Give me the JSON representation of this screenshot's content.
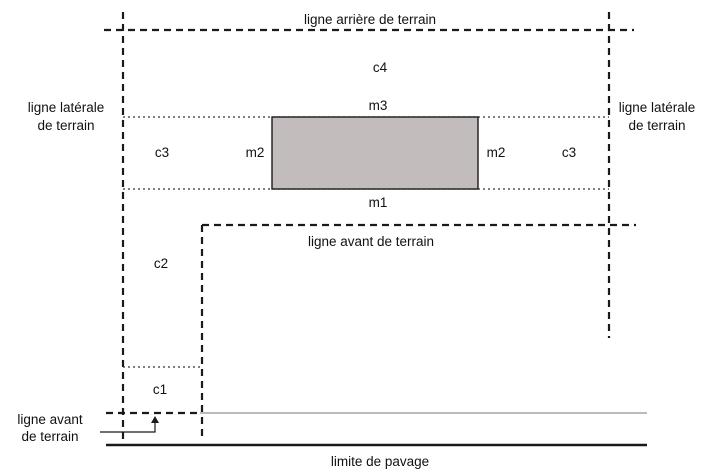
{
  "labels": {
    "rear_line": "ligne arrière de terrain",
    "side_left_1": "ligne latérale",
    "side_left_2": "de terrain",
    "side_right_1": "ligne latérale",
    "side_right_2": "de terrain",
    "front_line": "ligne avant de terrain",
    "front_left_1": "ligne avant",
    "front_left_2": "de terrain",
    "paving": "limite de pavage"
  },
  "zones": {
    "c1": "c1",
    "c2": "c2",
    "c3_left": "c3",
    "c3_right": "c3",
    "c4": "c4"
  },
  "margins": {
    "m1": "m1",
    "m2_left": "m2",
    "m2_right": "m2",
    "m3": "m3"
  },
  "colors": {
    "building_fill": "#c3bcbd",
    "line": "#1a1a1a"
  }
}
